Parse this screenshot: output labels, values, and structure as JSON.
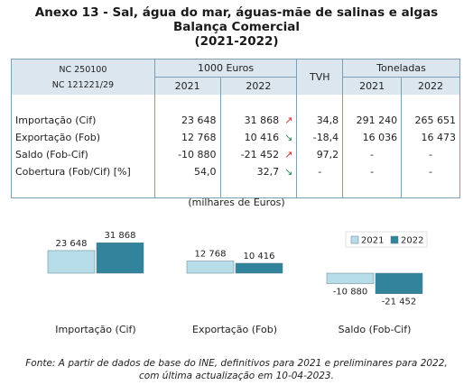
{
  "title": {
    "line1": "Anexo 13 - Sal, água do mar, águas-mãe de salinas e algas",
    "line2": "Balança Comercial",
    "line3": "(2021-2022)"
  },
  "table": {
    "nc_line1": "NC 250100",
    "nc_line2": "NC 121221/29",
    "group_euros": "1000 Euros",
    "group_tvh": "TVH",
    "group_ton": "Toneladas",
    "years": [
      "2021",
      "2022",
      "2021",
      "2022"
    ],
    "rows": [
      {
        "label": "Importação (Cif)",
        "e2021": "23 648",
        "e2022": "31 868",
        "arrow": "↗",
        "tvh": "34,8",
        "t2021": "291 240",
        "t2022": "265 651"
      },
      {
        "label": "Exportação (Fob)",
        "e2021": "12 768",
        "e2022": "10 416",
        "arrow": "↘",
        "tvh": "-18,4",
        "t2021": "16 036",
        "t2022": "16 473"
      },
      {
        "label": "Saldo (Fob-Cif)",
        "e2021": "-10 880",
        "e2022": "-21 452",
        "arrow": "↗",
        "tvh": "97,2",
        "t2021": "-",
        "t2022": "-"
      },
      {
        "label": "Cobertura (Fob/Cif) [%]",
        "e2021": "54,0",
        "e2022": "32,7",
        "arrow": "↘",
        "tvh": "-",
        "t2021": "-",
        "t2022": "-"
      }
    ],
    "arrow_colors": {
      "up": "#c0392b",
      "down": "#2e8b57"
    }
  },
  "chart_data": {
    "type": "bar",
    "title": "(milhares de Euros)",
    "categories": [
      "Importação (Cif)",
      "Exportação (Fob)",
      "Saldo (Fob-Cif)"
    ],
    "series": [
      {
        "name": "2021",
        "values": [
          23648,
          12768,
          -10880
        ],
        "labels": [
          "23 648",
          "12 768",
          "-10 880"
        ],
        "color": "#b7dde8"
      },
      {
        "name": "2022",
        "values": [
          31868,
          10416,
          -21452
        ],
        "labels": [
          "31 868",
          "10 416",
          "-21 452"
        ],
        "color": "#31849b"
      }
    ],
    "legend": "right",
    "grid": false
  },
  "source": {
    "line1": "Fonte: A partir de dados de base do INE, definitivos para 2021 e preliminares para 2022,",
    "line2": "com última actualização em 10-04-2023."
  }
}
